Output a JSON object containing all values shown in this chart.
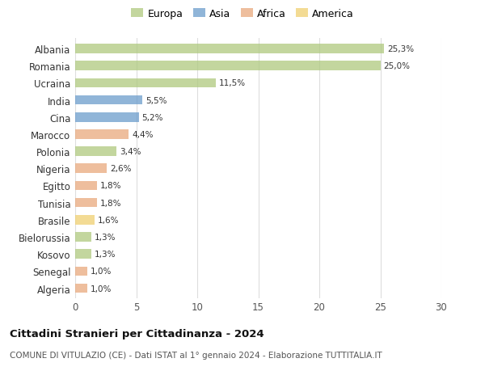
{
  "categories": [
    "Albania",
    "Romania",
    "Ucraina",
    "India",
    "Cina",
    "Marocco",
    "Polonia",
    "Nigeria",
    "Egitto",
    "Tunisia",
    "Brasile",
    "Bielorussia",
    "Kosovo",
    "Senegal",
    "Algeria"
  ],
  "values": [
    25.3,
    25.0,
    11.5,
    5.5,
    5.2,
    4.4,
    3.4,
    2.6,
    1.8,
    1.8,
    1.6,
    1.3,
    1.3,
    1.0,
    1.0
  ],
  "labels": [
    "25,3%",
    "25,0%",
    "11,5%",
    "5,5%",
    "5,2%",
    "4,4%",
    "3,4%",
    "2,6%",
    "1,8%",
    "1,8%",
    "1,6%",
    "1,3%",
    "1,3%",
    "1,0%",
    "1,0%"
  ],
  "colors": [
    "#afc97e",
    "#afc97e",
    "#afc97e",
    "#6b9ccc",
    "#6b9ccc",
    "#e9a97d",
    "#afc97e",
    "#e9a97d",
    "#e9a97d",
    "#e9a97d",
    "#f0d070",
    "#afc97e",
    "#afc97e",
    "#e9a97d",
    "#e9a97d"
  ],
  "legend_labels": [
    "Europa",
    "Asia",
    "Africa",
    "America"
  ],
  "legend_colors": [
    "#afc97e",
    "#6b9ccc",
    "#e9a97d",
    "#f0d070"
  ],
  "title": "Cittadini Stranieri per Cittadinanza - 2024",
  "subtitle": "COMUNE DI VITULAZIO (CE) - Dati ISTAT al 1° gennaio 2024 - Elaborazione TUTTITALIA.IT",
  "xlim": [
    0,
    30
  ],
  "xticks": [
    0,
    5,
    10,
    15,
    20,
    25,
    30
  ],
  "background_color": "#ffffff",
  "grid_color": "#dddddd",
  "bar_alpha": 0.75,
  "bar_height": 0.55
}
